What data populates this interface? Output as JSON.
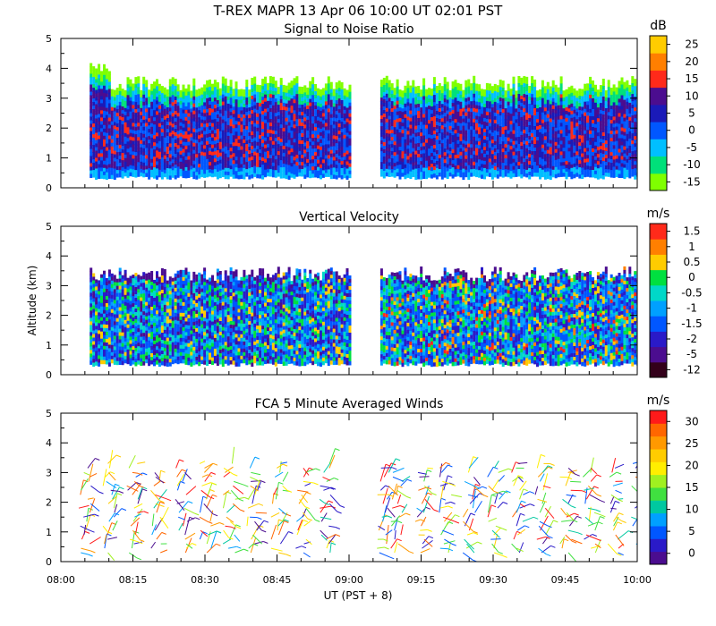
{
  "figure": {
    "title": "T-REX  MAPR 13 Apr 06  10:00 UT  02:01  PST",
    "xlabel": "UT  (PST + 8)",
    "ylabel": "Altitude (km)"
  },
  "colors": {
    "scale": [
      "#7fff00",
      "#00e07a",
      "#00bfff",
      "#0057ff",
      "#1a1ab8",
      "#4b0d8f",
      "#ff2a1a",
      "#ff7f00",
      "#ffcc00"
    ],
    "velocity": [
      "#33001a",
      "#4b0d8f",
      "#2a1ac8",
      "#0057ff",
      "#00a0ff",
      "#00d8c8",
      "#00e040",
      "#ffcc00",
      "#ff7f00",
      "#ff2a1a"
    ],
    "wind": [
      "#4b0d8f",
      "#2a1ac8",
      "#0057ff",
      "#00a0ff",
      "#00c8a0",
      "#40e040",
      "#a0f020",
      "#ffee00",
      "#ffcc00",
      "#ff9900",
      "#ff6600",
      "#ff1a1a"
    ]
  },
  "chart_data": [
    {
      "type": "heatmap",
      "title": "Signal to Noise Ratio",
      "units": "dB",
      "ylim": [
        0,
        5
      ],
      "xlim": [
        "08:00",
        "10:00"
      ],
      "yticks": [
        "0",
        "1",
        "2",
        "3",
        "4",
        "5"
      ],
      "xticks": [
        "08:00",
        "08:15",
        "08:30",
        "08:45",
        "09:00",
        "09:15",
        "09:30",
        "09:45",
        "10:00"
      ],
      "colorbar_ticks": [
        "-15",
        "-10",
        "-5",
        "0",
        "5",
        "10",
        "15",
        "20",
        "25"
      ],
      "data_gap": [
        "09:00",
        "09:06"
      ],
      "data_start": "08:06",
      "min_altitude_km": 0.4,
      "approx_top_km": 3.5,
      "grid": false
    },
    {
      "type": "heatmap",
      "title": "Vertical Velocity",
      "units": "m/s",
      "ylim": [
        0,
        5
      ],
      "xlim": [
        "08:00",
        "10:00"
      ],
      "yticks": [
        "0",
        "1",
        "2",
        "3",
        "4",
        "5"
      ],
      "xticks": [
        "08:00",
        "08:15",
        "08:30",
        "08:45",
        "09:00",
        "09:15",
        "09:30",
        "09:45",
        "10:00"
      ],
      "colorbar_ticks": [
        "-12",
        "-5",
        "-2",
        "-1.5",
        "-1",
        "-0.5",
        "0",
        "0.5",
        "1",
        "1.5"
      ],
      "data_gap": [
        "09:00",
        "09:06"
      ],
      "data_start": "08:06",
      "min_altitude_km": 0.4,
      "approx_top_km": 3.4,
      "grid": false
    },
    {
      "type": "scatter",
      "title": "FCA 5 Minute Averaged Winds",
      "units": "m/s",
      "ylim": [
        0,
        5
      ],
      "xlim": [
        "08:00",
        "10:00"
      ],
      "yticks": [
        "0",
        "1",
        "2",
        "3",
        "4",
        "5"
      ],
      "xticks": [
        "08:00",
        "08:15",
        "08:30",
        "08:45",
        "09:00",
        "09:15",
        "09:30",
        "09:45",
        "10:00"
      ],
      "colorbar_ticks": [
        "0",
        "5",
        "10",
        "15",
        "20",
        "25",
        "30"
      ],
      "data_gap": [
        "09:00",
        "09:06"
      ],
      "profile_times": [
        "08:05",
        "08:10",
        "08:15",
        "08:20",
        "08:25",
        "08:30",
        "08:35",
        "08:40",
        "08:45",
        "08:50",
        "08:55",
        "09:07",
        "09:10",
        "09:15",
        "09:20",
        "09:25",
        "09:30",
        "09:35",
        "09:40",
        "09:45",
        "09:50",
        "09:55",
        "10:00"
      ],
      "approx_top_km": 3.3,
      "grid": false
    }
  ]
}
